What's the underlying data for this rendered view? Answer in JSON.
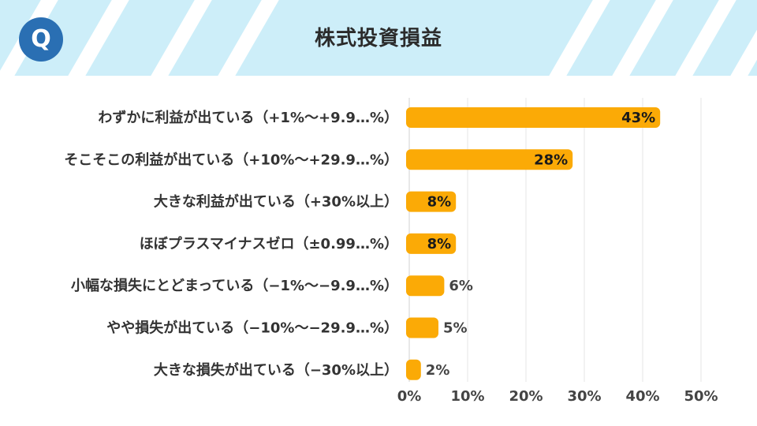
{
  "header": {
    "logo_letter": "Q",
    "title": "株式投資損益"
  },
  "colors": {
    "bar": "#fbaa06",
    "grid": "#e6e6e6",
    "header_bg": "#cdeef9",
    "logo": "#2a6fb3"
  },
  "chart_data": {
    "type": "bar",
    "orientation": "horizontal",
    "title": "株式投資損益",
    "categories": [
      "わずかに利益が出ている（+1%～+9.9…%）",
      "そこそこの利益が出ている（+10%～+29.9…%）",
      "大きな利益が出ている（+30%以上）",
      "ほぼプラスマイナスゼロ（±0.99…%）",
      "小幅な損失にとどまっている（−1%～−9.9…%）",
      "やや損失が出ている（−10%～−29.9…%）",
      "大きな損失が出ている（−30%以上）"
    ],
    "values": [
      43,
      28,
      8,
      8,
      6,
      5,
      2
    ],
    "value_labels": [
      "43%",
      "28%",
      "8%",
      "8%",
      "6%",
      "5%",
      "2%"
    ],
    "xlim": [
      0,
      50
    ],
    "x_ticks": [
      "0%",
      "10%",
      "20%",
      "30%",
      "40%",
      "50%"
    ],
    "grid": true,
    "legend": "none"
  }
}
